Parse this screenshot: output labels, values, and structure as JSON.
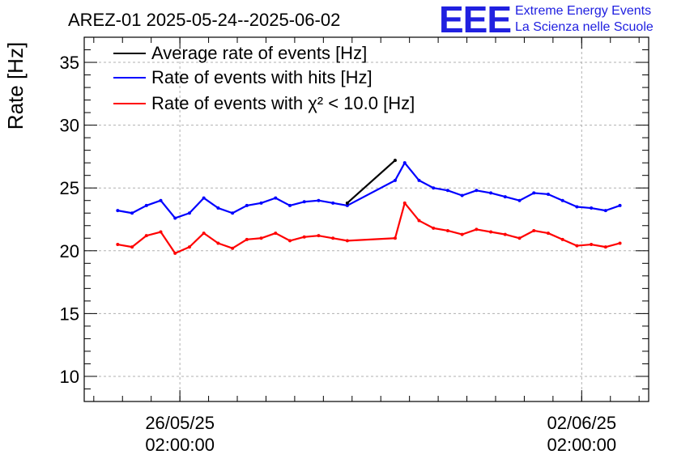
{
  "chart_data": {
    "type": "line",
    "title": "AREZ-01 2025-05-24--2025-06-02",
    "ylabel": "Rate [Hz]",
    "xlabel": "",
    "ylim": [
      8,
      37
    ],
    "xlim": [
      "2025-05-24T10:00",
      "2025-06-03T06:00"
    ],
    "grid": true,
    "legend_position": "top-left",
    "x_ticks": [
      {
        "x": "2025-05-26T02:00",
        "label_line1": "26/05/25",
        "label_line2": "02:00:00"
      },
      {
        "x": "2025-06-02T02:00",
        "label_line1": "02/06/25",
        "label_line2": "02:00:00"
      }
    ],
    "y_ticks": [
      10,
      15,
      20,
      25,
      30,
      35
    ],
    "series": [
      {
        "name": "Average rate of events [Hz]",
        "color": "#000000",
        "x": [
          "2025-05-29T00:00",
          "2025-05-29T20:00"
        ],
        "values": [
          23.8,
          27.2
        ]
      },
      {
        "name": "Rate of events with hits [Hz]",
        "color": "#0000ff",
        "x": [
          "2025-05-25T00:00",
          "2025-05-25T06:00",
          "2025-05-25T12:00",
          "2025-05-25T18:00",
          "2025-05-26T00:00",
          "2025-05-26T06:00",
          "2025-05-26T12:00",
          "2025-05-26T18:00",
          "2025-05-27T00:00",
          "2025-05-27T06:00",
          "2025-05-27T12:00",
          "2025-05-27T18:00",
          "2025-05-28T00:00",
          "2025-05-28T06:00",
          "2025-05-28T12:00",
          "2025-05-28T18:00",
          "2025-05-29T00:00",
          "2025-05-29T20:00",
          "2025-05-30T00:00",
          "2025-05-30T06:00",
          "2025-05-30T12:00",
          "2025-05-30T18:00",
          "2025-05-31T00:00",
          "2025-05-31T06:00",
          "2025-05-31T12:00",
          "2025-05-31T18:00",
          "2025-06-01T00:00",
          "2025-06-01T06:00",
          "2025-06-01T12:00",
          "2025-06-01T18:00",
          "2025-06-02T00:00",
          "2025-06-02T06:00",
          "2025-06-02T12:00",
          "2025-06-02T18:00"
        ],
        "values": [
          23.2,
          23.0,
          23.6,
          24.0,
          22.6,
          23.0,
          24.2,
          23.4,
          23.0,
          23.6,
          23.8,
          24.2,
          23.6,
          23.9,
          24.0,
          23.8,
          23.6,
          25.6,
          27.0,
          25.6,
          25.0,
          24.8,
          24.4,
          24.8,
          24.6,
          24.3,
          24.0,
          24.6,
          24.5,
          24.0,
          23.5,
          23.4,
          23.2,
          23.6
        ]
      },
      {
        "name": "Rate of events with χ² < 10.0 [Hz]",
        "color": "#ff0000",
        "x": [
          "2025-05-25T00:00",
          "2025-05-25T06:00",
          "2025-05-25T12:00",
          "2025-05-25T18:00",
          "2025-05-26T00:00",
          "2025-05-26T06:00",
          "2025-05-26T12:00",
          "2025-05-26T18:00",
          "2025-05-27T00:00",
          "2025-05-27T06:00",
          "2025-05-27T12:00",
          "2025-05-27T18:00",
          "2025-05-28T00:00",
          "2025-05-28T06:00",
          "2025-05-28T12:00",
          "2025-05-28T18:00",
          "2025-05-29T00:00",
          "2025-05-29T20:00",
          "2025-05-30T00:00",
          "2025-05-30T06:00",
          "2025-05-30T12:00",
          "2025-05-30T18:00",
          "2025-05-31T00:00",
          "2025-05-31T06:00",
          "2025-05-31T12:00",
          "2025-05-31T18:00",
          "2025-06-01T00:00",
          "2025-06-01T06:00",
          "2025-06-01T12:00",
          "2025-06-01T18:00",
          "2025-06-02T00:00",
          "2025-06-02T06:00",
          "2025-06-02T12:00",
          "2025-06-02T18:00"
        ],
        "values": [
          20.5,
          20.3,
          21.2,
          21.5,
          19.8,
          20.3,
          21.4,
          20.6,
          20.2,
          20.9,
          21.0,
          21.4,
          20.8,
          21.1,
          21.2,
          21.0,
          20.8,
          21.0,
          23.8,
          22.4,
          21.8,
          21.6,
          21.3,
          21.7,
          21.5,
          21.3,
          21.0,
          21.6,
          21.4,
          20.9,
          20.4,
          20.5,
          20.3,
          20.6
        ]
      }
    ]
  },
  "logo": {
    "mark": "EEE",
    "line1": "Extreme Energy Events",
    "line2": "La Scienza nelle Scuole"
  }
}
